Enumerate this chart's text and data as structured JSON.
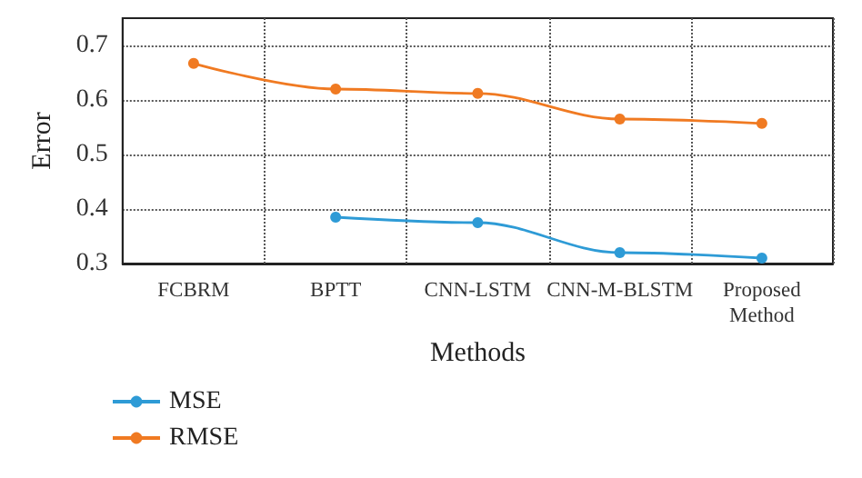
{
  "chart_data": {
    "type": "line",
    "xlabel": "Methods",
    "ylabel": "Error",
    "categories": [
      "FCBRM",
      "BPTT",
      "CNN-LSTM",
      "CNN-M-BLSTM",
      "Proposed Method"
    ],
    "series": [
      {
        "name": "MSE",
        "color": "#2e9bd6",
        "values": [
          null,
          0.385,
          0.375,
          0.32,
          0.31
        ]
      },
      {
        "name": "RMSE",
        "color": "#f07a22",
        "values": [
          0.667,
          0.62,
          0.612,
          0.565,
          0.557
        ]
      }
    ],
    "ylim": [
      0.3,
      0.75
    ],
    "yticks": [
      0.3,
      0.4,
      0.5,
      0.6,
      0.7
    ],
    "grid": true,
    "legend": "bottom left",
    "marker": "circle",
    "line_style": "solid"
  }
}
